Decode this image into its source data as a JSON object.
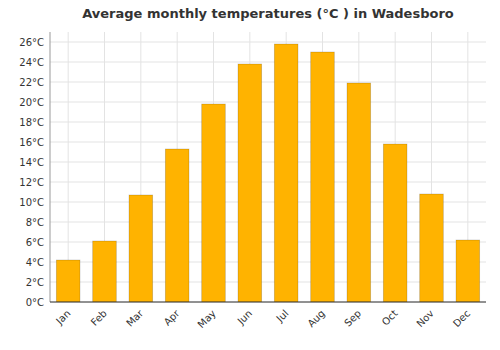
{
  "chart_data": {
    "type": "bar",
    "title": "Average monthly temperatures (°C ) in Wadesboro",
    "categories": [
      "Jan",
      "Feb",
      "Mar",
      "Apr",
      "May",
      "Jun",
      "Jul",
      "Aug",
      "Sep",
      "Oct",
      "Nov",
      "Dec"
    ],
    "values": [
      4.2,
      6.1,
      10.7,
      15.3,
      19.8,
      23.8,
      25.8,
      25.0,
      21.9,
      15.8,
      10.8,
      6.2
    ],
    "color": "#FFB300",
    "ylim": [
      0,
      27
    ],
    "yticks": [
      {
        "value": 0,
        "label": "0°C"
      },
      {
        "value": 2,
        "label": "2°C"
      },
      {
        "value": 4,
        "label": "4°C"
      },
      {
        "value": 6,
        "label": "6°C"
      },
      {
        "value": 8,
        "label": "8°C"
      },
      {
        "value": 10,
        "label": "10°C"
      },
      {
        "value": 12,
        "label": "12°C"
      },
      {
        "value": 14,
        "label": "14°C"
      },
      {
        "value": 16,
        "label": "16°C"
      },
      {
        "value": 18,
        "label": "18°C"
      },
      {
        "value": 20,
        "label": "20°C"
      },
      {
        "value": 22,
        "label": "22°C"
      },
      {
        "value": 24,
        "label": "24°C"
      },
      {
        "value": 26,
        "label": "26°C"
      }
    ],
    "grid": true
  }
}
